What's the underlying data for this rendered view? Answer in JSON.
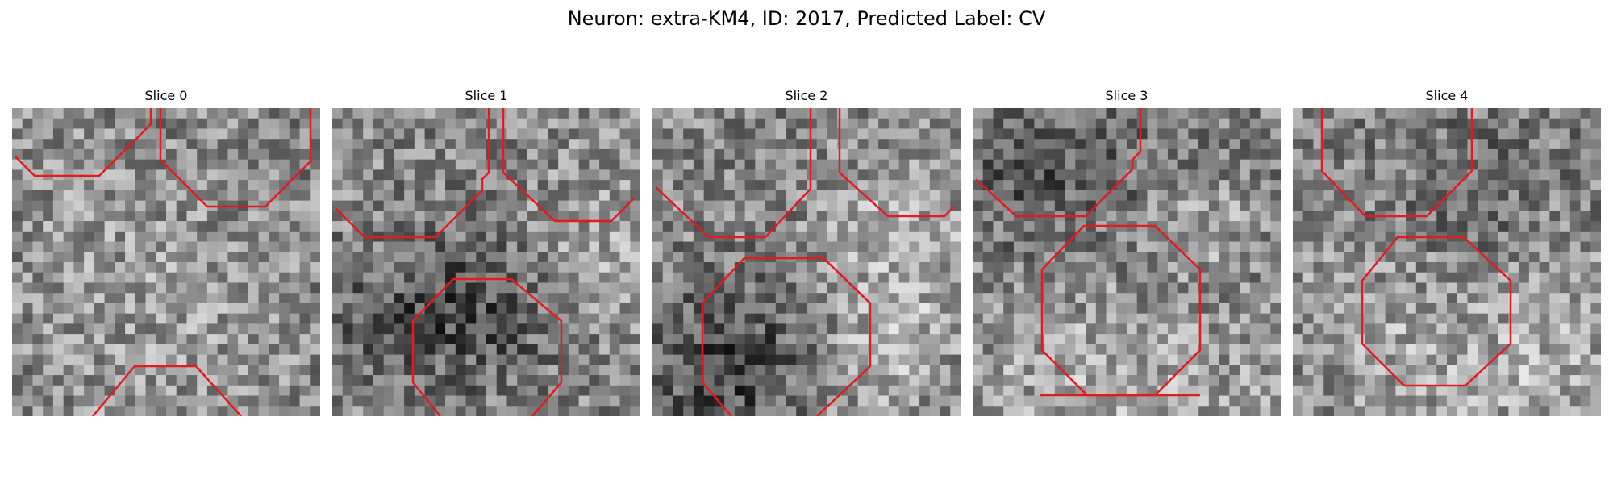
{
  "figure": {
    "title": "Neuron: extra-KM4, ID: 2017, Predicted Label: CV"
  },
  "colors": {
    "contour": "#e41a1c",
    "background": "#ffffff"
  },
  "slices": [
    {
      "title": "Slice 0"
    },
    {
      "title": "Slice 1"
    },
    {
      "title": "Slice 2"
    },
    {
      "title": "Slice 3"
    },
    {
      "title": "Slice 4"
    }
  ]
}
